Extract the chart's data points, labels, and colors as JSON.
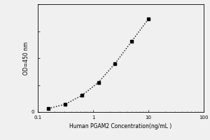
{
  "x_data": [
    0.156,
    0.313,
    0.625,
    1.25,
    2.5,
    5.0,
    10.0
  ],
  "y_data": [
    0.052,
    0.115,
    0.245,
    0.44,
    0.72,
    1.05,
    1.38
  ],
  "xlabel": "Human PGAM2 Concentration(ng/mL )",
  "ylabel": "OD=450 nm",
  "xlim": [
    0.1,
    100
  ],
  "ylim": [
    0,
    1.6
  ],
  "yticks": [
    0.0,
    0.4,
    0.8,
    1.2,
    1.6
  ],
  "ytick_labels": [
    "0",
    "",
    "",
    "",
    ""
  ],
  "xticks": [
    0.1,
    1,
    10,
    100
  ],
  "xtick_labels": [
    "0.1",
    "1",
    "10",
    "100"
  ],
  "marker": "s",
  "marker_color": "black",
  "marker_size": 3.5,
  "line_style": ":",
  "line_color": "black",
  "line_width": 1.0,
  "background_color": "#f0f0f0",
  "axis_fontsize": 5.5,
  "tick_fontsize": 5.0
}
